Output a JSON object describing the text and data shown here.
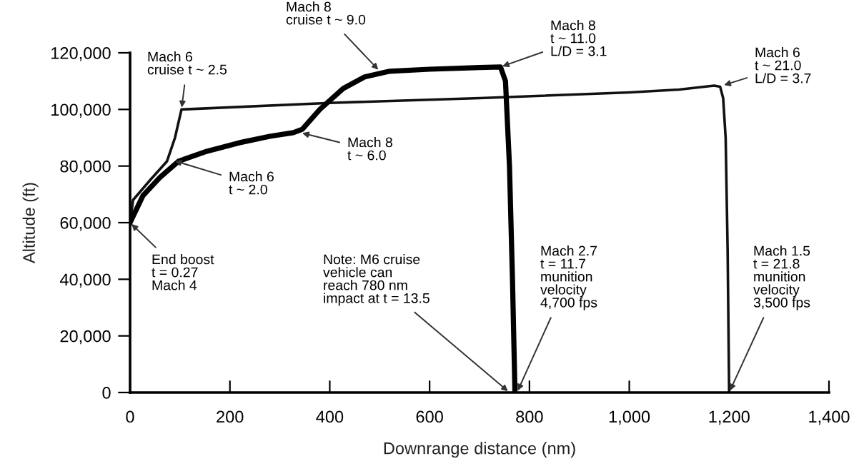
{
  "chart_data": {
    "type": "line",
    "xlabel": "Downrange distance (nm)",
    "ylabel": "Altitude (ft)",
    "xlim": [
      0,
      1400
    ],
    "ylim": [
      0,
      120000
    ],
    "xticks": [
      0,
      200,
      400,
      600,
      800,
      {
        "value": 1000,
        "label": "1,000"
      },
      {
        "value": 1200,
        "label": "1,200"
      },
      {
        "value": 1400,
        "label": "1,400"
      }
    ],
    "yticks": [
      0,
      {
        "value": 20000,
        "label": "20,000"
      },
      {
        "value": 40000,
        "label": "40,000"
      },
      {
        "value": 60000,
        "label": "60,000"
      },
      {
        "value": 80000,
        "label": "80,000"
      },
      {
        "value": 100000,
        "label": "100,000"
      },
      {
        "value": 120000,
        "label": "120,000"
      }
    ],
    "grid": false,
    "marker": "none",
    "line_style": "solid",
    "series": [
      {
        "color": "#111111",
        "x": [
          0,
          6,
          40,
          74,
          90,
          103,
          400,
          700,
          1000,
          1100,
          1170,
          1182,
          1188,
          1193,
          1197,
          1200
        ],
        "values": [
          60000,
          68000,
          75000,
          81700,
          90000,
          100000,
          102300,
          104000,
          106000,
          107000,
          108400,
          108000,
          104000,
          90000,
          50000,
          0
        ]
      },
      {
        "color": "#000000",
        "x": [
          0,
          26,
          60,
          97,
          150,
          218,
          280,
          327,
          345,
          380,
          427,
          470,
          520,
          600,
          700,
          742,
          752,
          760,
          766,
          771
        ],
        "values": [
          60000,
          69600,
          76000,
          81700,
          85000,
          88200,
          90500,
          91800,
          93000,
          100000,
          107400,
          111500,
          113500,
          114200,
          114800,
          115000,
          110000,
          80000,
          40000,
          0
        ]
      }
    ],
    "annotations": [
      {
        "text": "Mach 8\ncruise t ~ 9.0",
        "x": 500,
        "y": 113500
      },
      {
        "text": "Mach 6\ncruise t ~ 2.5",
        "x": 103,
        "y": 100000
      },
      {
        "text": "Mach 8\nt ~ 11.0\nL/D = 3.1",
        "x": 742,
        "y": 115000
      },
      {
        "text": "Mach 6\nt ~ 21.0\nL/D = 3.7",
        "x": 1186,
        "y": 108400
      },
      {
        "text": "Mach 8\nt ~ 6.0",
        "x": 341,
        "y": 91800
      },
      {
        "text": "Mach 6\nt ~ 2.0",
        "x": 86,
        "y": 82000
      },
      {
        "text": "End boost\nt = 0.27\nMach 4",
        "x": 0,
        "y": 60000
      },
      {
        "text": "Note: M6 cruise\nvehicle can\nreach 780 nm\nimpact at t = 13.5",
        "x": 760,
        "y": 0
      },
      {
        "text": "Mach 2.7\nt = 11.7\nmunition\nvelocity\n4,700 fps",
        "x": 775,
        "y": 0
      },
      {
        "text": "Mach 1.5\nt = 21.8\nmunition\nvelocity\n3,500 fps",
        "x": 1200,
        "y": 0
      }
    ]
  }
}
